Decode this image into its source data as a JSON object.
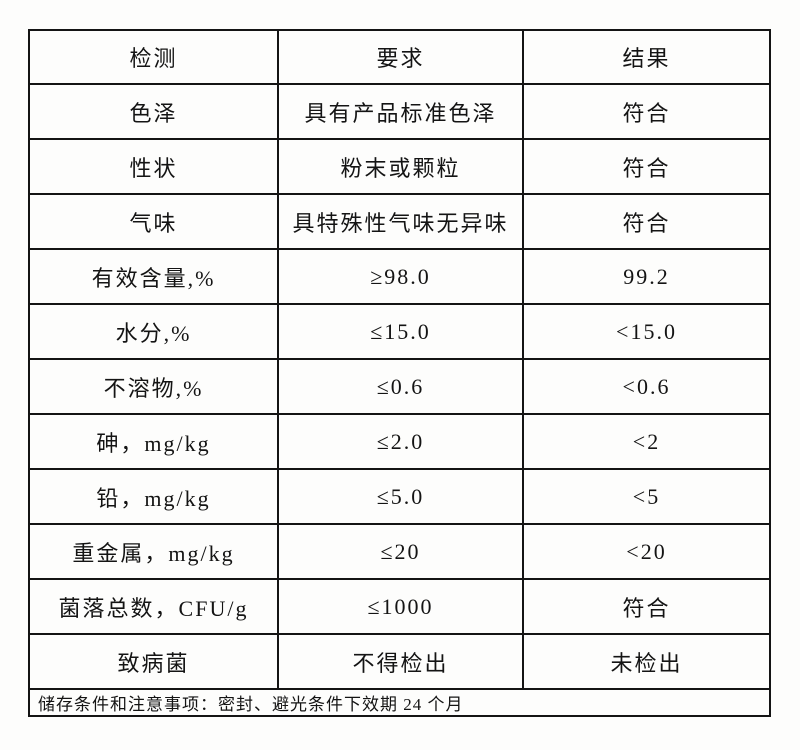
{
  "document": {
    "type": "quality-inspection-table",
    "colors": {
      "background": "#fdfdfc",
      "border": "#141414",
      "text": "#141414"
    },
    "table": {
      "columns": [
        "检测",
        "要求",
        "结果"
      ],
      "rows": [
        {
          "test": "色泽",
          "requirement": "具有产品标准色泽",
          "result": "符合"
        },
        {
          "test": "性状",
          "requirement": "粉末或颗粒",
          "result": "符合"
        },
        {
          "test": "气味",
          "requirement": "具特殊性气味无异味",
          "result": "符合"
        },
        {
          "test": "有效含量,%",
          "requirement": "≥98.0",
          "result": "99.2"
        },
        {
          "test": "水分,%",
          "requirement": "≤15.0",
          "result": "<15.0"
        },
        {
          "test": "不溶物,%",
          "requirement": "≤0.6",
          "result": "<0.6"
        },
        {
          "test": "砷，mg/kg",
          "requirement": "≤2.0",
          "result": "<2"
        },
        {
          "test": "铅，mg/kg",
          "requirement": "≤5.0",
          "result": "<5"
        },
        {
          "test": "重金属，mg/kg",
          "requirement": "≤20",
          "result": "<20"
        },
        {
          "test": "菌落总数，CFU/g",
          "requirement": "≤1000",
          "result": "符合"
        },
        {
          "test": "致病菌",
          "requirement": "不得检出",
          "result": "未检出"
        }
      ],
      "footer_note": "储存条件和注意事项：密封、避光条件下效期 24 个月"
    }
  }
}
